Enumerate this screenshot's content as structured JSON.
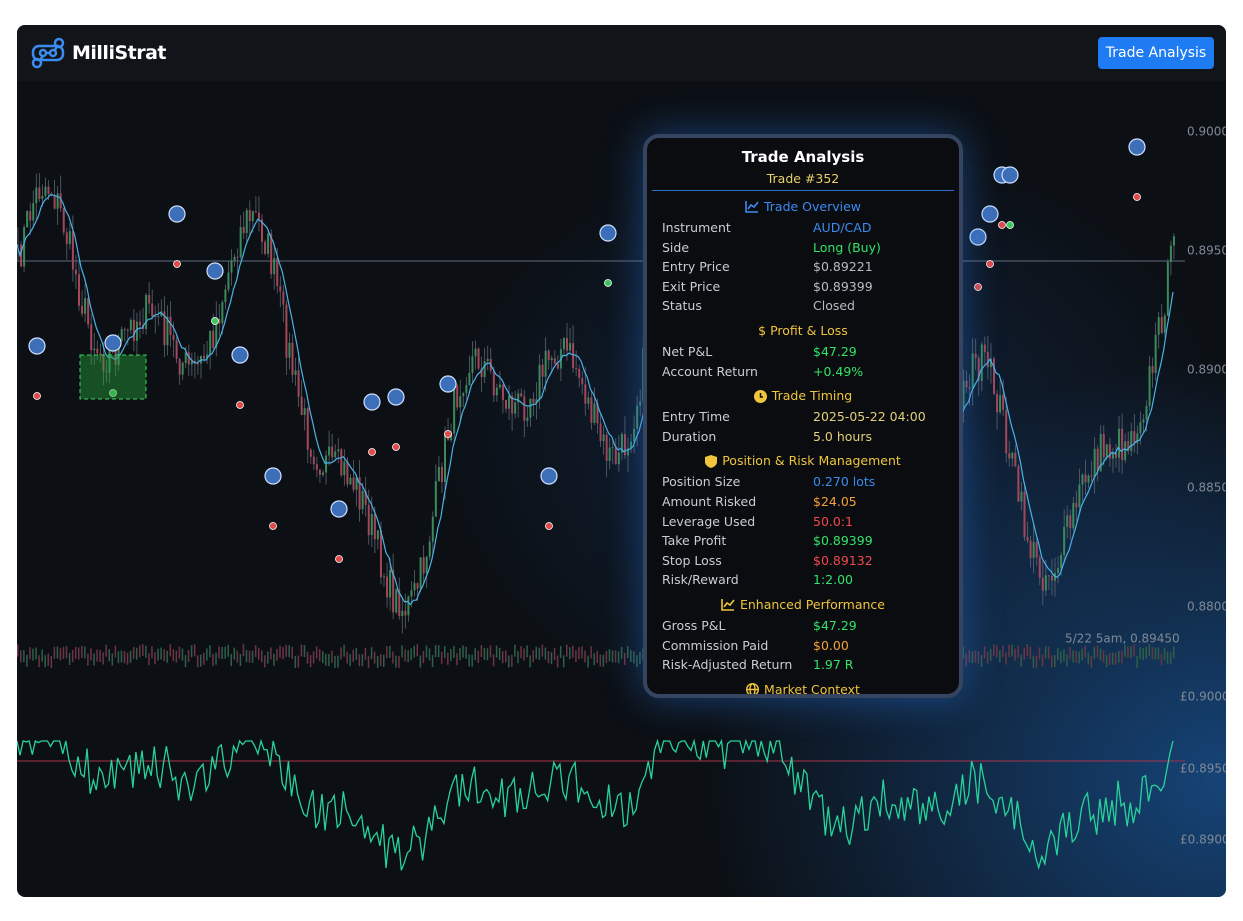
{
  "header": {
    "logo": "MilliStrat",
    "button": "Trade Analysis"
  },
  "chart": {
    "price_ticks": [
      "0.9000",
      "0.8950",
      "0.8900",
      "0.8850",
      "0.8800"
    ],
    "crosshair_label": "5/22 5am, 0.89450",
    "equity_ticks": [
      "£0.9000",
      "£0.8950",
      "£0.8900"
    ]
  },
  "panel": {
    "title": "Trade Analysis",
    "subtitle": "Trade #352",
    "sections": [
      {
        "heading": "Trade Overview",
        "rows": [
          [
            "Instrument",
            "AUD/CAD"
          ],
          [
            "Side",
            "Long (Buy)"
          ],
          [
            "Entry Price",
            "$0.89221"
          ],
          [
            "Exit Price",
            "$0.89399"
          ],
          [
            "Status",
            "Closed"
          ]
        ]
      },
      {
        "heading": "$ Profit & Loss",
        "rows": [
          [
            "Net P&L",
            "$47.29"
          ],
          [
            "Account Return",
            "+0.49%"
          ]
        ]
      },
      {
        "heading": "Trade Timing",
        "rows": [
          [
            "Entry Time",
            "2025-05-22 04:00"
          ],
          [
            "Duration",
            "5.0 hours"
          ]
        ]
      },
      {
        "heading": "Position & Risk Management",
        "rows": [
          [
            "Position Size",
            "0.270 lots"
          ],
          [
            "Amount Risked",
            "$24.05"
          ],
          [
            "Leverage Used",
            "50.0:1"
          ],
          [
            "Take Profit",
            "$0.89399"
          ],
          [
            "Stop Loss",
            "$0.89132"
          ],
          [
            "Risk/Reward",
            "1:2.00"
          ]
        ]
      },
      {
        "heading": "Enhanced Performance",
        "rows": [
          [
            "Gross P&L",
            "$47.29"
          ],
          [
            "Commission Paid",
            "$0.00"
          ],
          [
            "Risk-Adjusted Return",
            "1.97 R"
          ]
        ]
      },
      {
        "heading": "Market Context",
        "rows": []
      }
    ]
  }
}
